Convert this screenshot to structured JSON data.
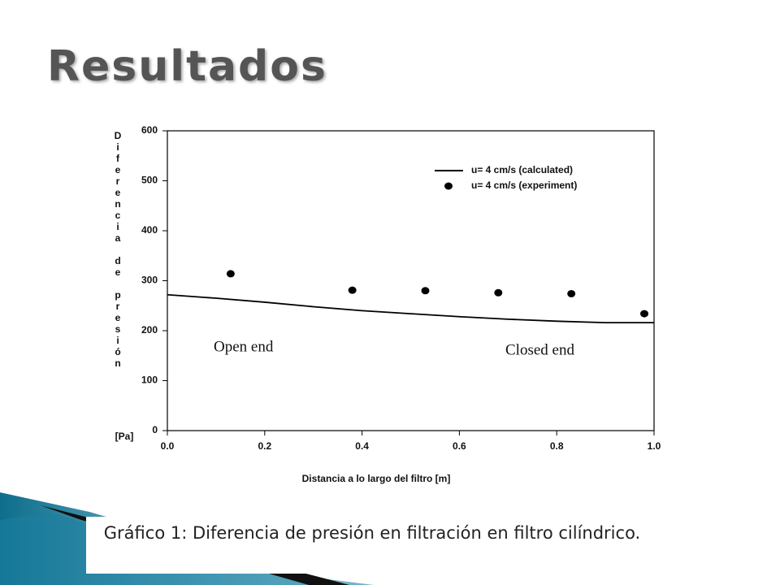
{
  "slide_title": "Resultados",
  "caption": "Gráfico 1: Diferencia de presión en filtración en filtro cilíndrico.",
  "chart_data": {
    "type": "line",
    "xlabel": "Distancia a lo largo del filtro [m]",
    "ylabel": "Diferencia de presión",
    "ylabel_unit": "[Pa]",
    "xlim": [
      0,
      1
    ],
    "ylim": [
      0,
      600
    ],
    "xticks": [
      {
        "value": 0,
        "label": "0.0"
      },
      0.2,
      0.4,
      0.6,
      0.8,
      {
        "value": 1,
        "label": "1.0"
      }
    ],
    "yticks": [
      0,
      100,
      200,
      300,
      400,
      500,
      600
    ],
    "legend": "upper right",
    "series": [
      {
        "name": "u= 4 cm/s (calculated)",
        "color": "#000000",
        "style": "line",
        "x": [
          0,
          0.1,
          0.2,
          0.3,
          0.4,
          0.5,
          0.6,
          0.7,
          0.8,
          0.9,
          1.0
        ],
        "values": [
          272,
          265,
          257,
          248,
          240,
          234,
          228,
          223,
          219,
          216,
          216
        ]
      },
      {
        "name": "u= 4 cm/s (experiment)",
        "color": "#000000",
        "style": "markers",
        "x": [
          0.13,
          0.38,
          0.53,
          0.68,
          0.83,
          0.98
        ],
        "values": [
          314,
          281,
          280,
          276,
          274,
          234
        ]
      }
    ],
    "annotations": [
      "Open end",
      "Closed end"
    ]
  }
}
